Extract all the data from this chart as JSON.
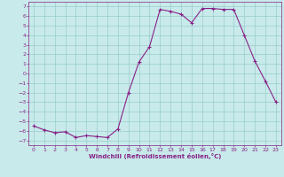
{
  "x": [
    0,
    1,
    2,
    3,
    4,
    5,
    6,
    7,
    8,
    9,
    10,
    11,
    12,
    13,
    14,
    15,
    16,
    17,
    18,
    19,
    20,
    21,
    22,
    23
  ],
  "y": [
    -5.5,
    -5.9,
    -6.2,
    -6.1,
    -6.7,
    -6.5,
    -6.6,
    -6.7,
    -5.8,
    -2.0,
    1.2,
    2.8,
    6.7,
    6.5,
    6.2,
    5.3,
    6.8,
    6.8,
    6.7,
    6.7,
    4.0,
    1.3,
    -0.8,
    -3.0
  ],
  "xlabel": "Windchill (Refroidissement éolien,°C)",
  "line_color": "#882288",
  "bg_color": "#c8eaea",
  "grid_color": "#99cccc",
  "ylim": [
    -7.5,
    7.5
  ],
  "xlim": [
    -0.5,
    23.5
  ],
  "yticks": [
    7,
    6,
    5,
    4,
    3,
    2,
    1,
    0,
    -1,
    -2,
    -3,
    -4,
    -5,
    -6,
    -7
  ],
  "xticks": [
    0,
    1,
    2,
    3,
    4,
    5,
    6,
    7,
    8,
    9,
    10,
    11,
    12,
    13,
    14,
    15,
    16,
    17,
    18,
    19,
    20,
    21,
    22,
    23
  ]
}
